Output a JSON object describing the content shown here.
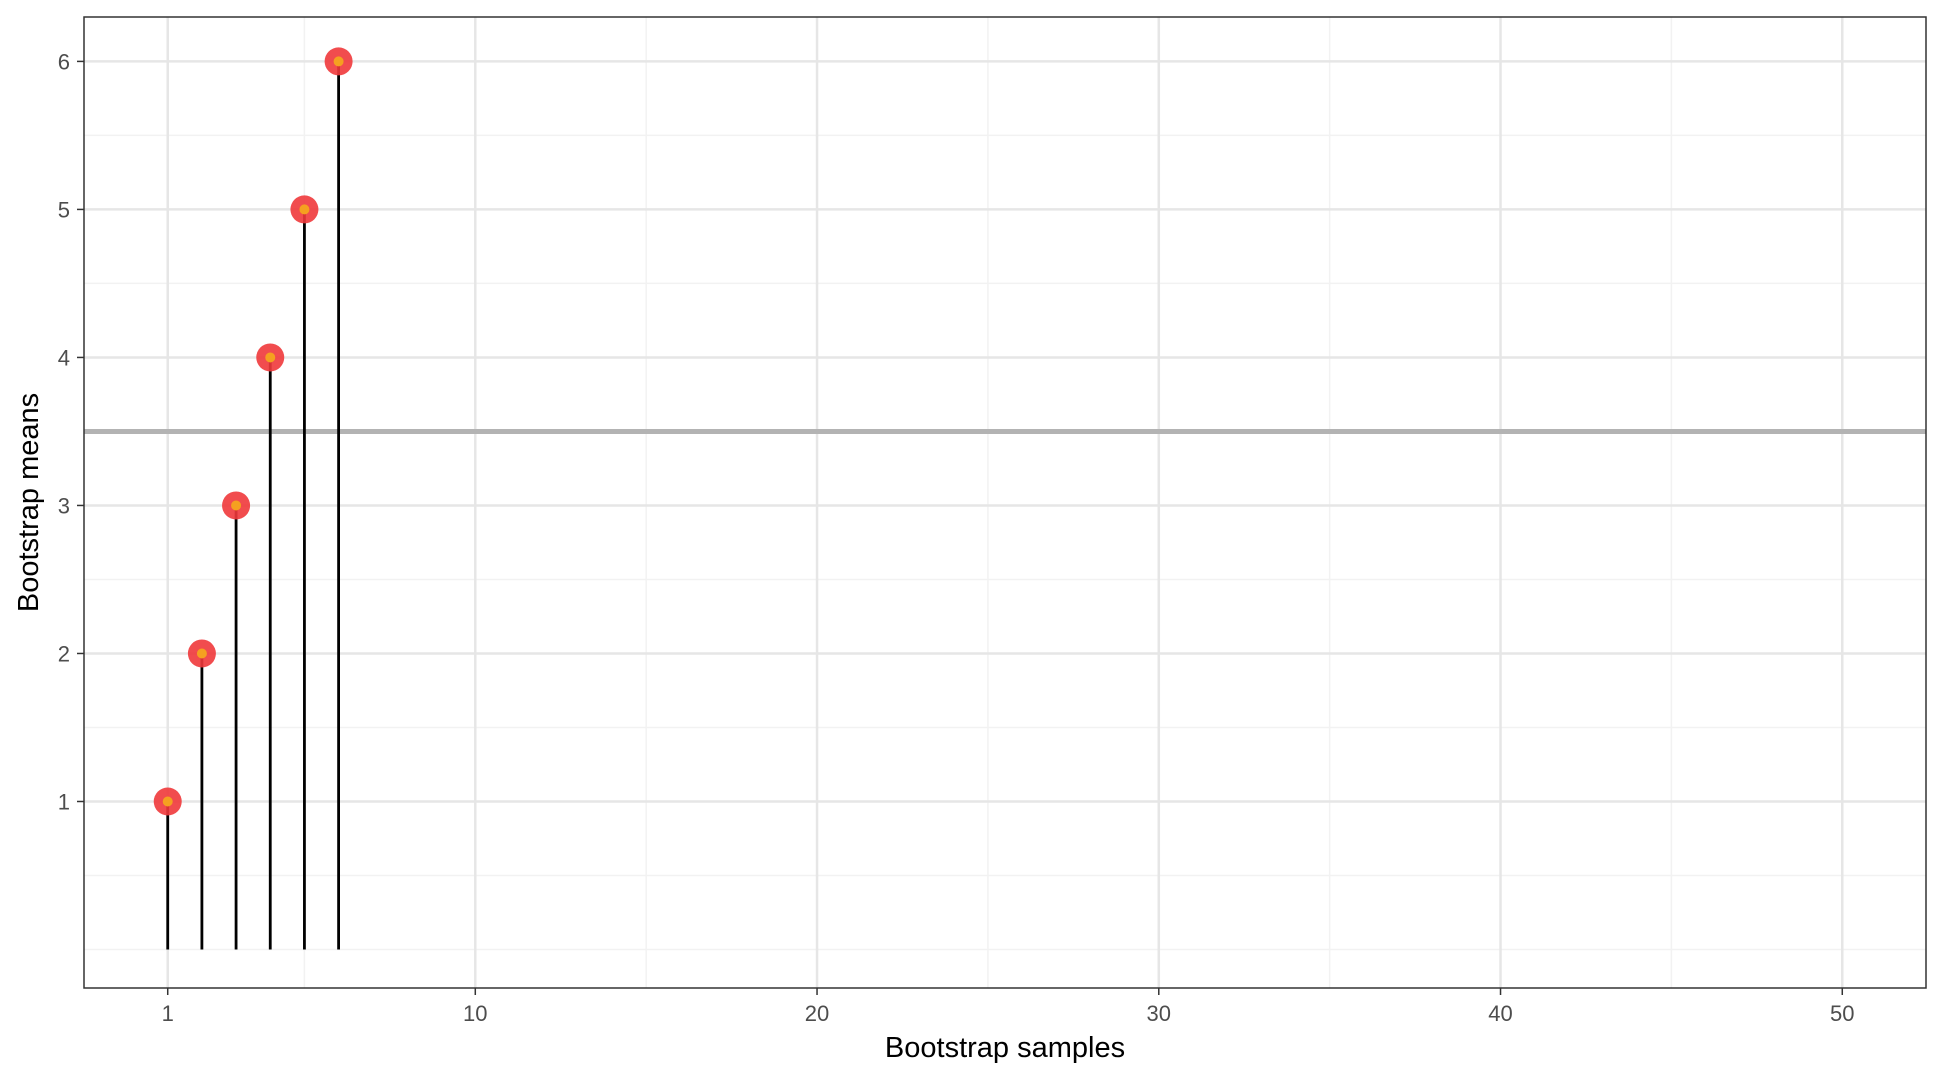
{
  "chart_data": {
    "type": "scatter",
    "title": "",
    "xlabel": "Bootstrap samples",
    "ylabel": "Bootstrap means",
    "x": [
      1,
      2,
      3,
      4,
      5,
      6
    ],
    "y": [
      1,
      2,
      3,
      4,
      5,
      6
    ],
    "xlim": [
      -1.45,
      52.45
    ],
    "ylim": [
      -0.26,
      6.3
    ],
    "x_ticks": [
      1,
      10,
      20,
      30,
      40,
      50
    ],
    "x_tick_labels": [
      "1",
      "10",
      "20",
      "30",
      "40",
      "50"
    ],
    "x_minor_ticks": [
      5,
      15,
      25,
      35,
      45
    ],
    "y_ticks": [
      1,
      2,
      3,
      4,
      5,
      6
    ],
    "y_tick_labels": [
      "1",
      "2",
      "3",
      "4",
      "5",
      "6"
    ],
    "y_minor_ticks": [
      0,
      0.5,
      1.5,
      2.5,
      3.5,
      4.5,
      5.5
    ],
    "reference_line_y": 3.5,
    "segment_base_y": 0,
    "grid": true,
    "legend": "none",
    "colors": {
      "point_outer": "#f0383b",
      "point_inner": "#f5a020",
      "segment": "#000000",
      "reference_line": "#b3b3b3",
      "grid_major": "#e6e6e6",
      "grid_minor": "#f2f2f2",
      "panel_border": "#333333"
    }
  }
}
